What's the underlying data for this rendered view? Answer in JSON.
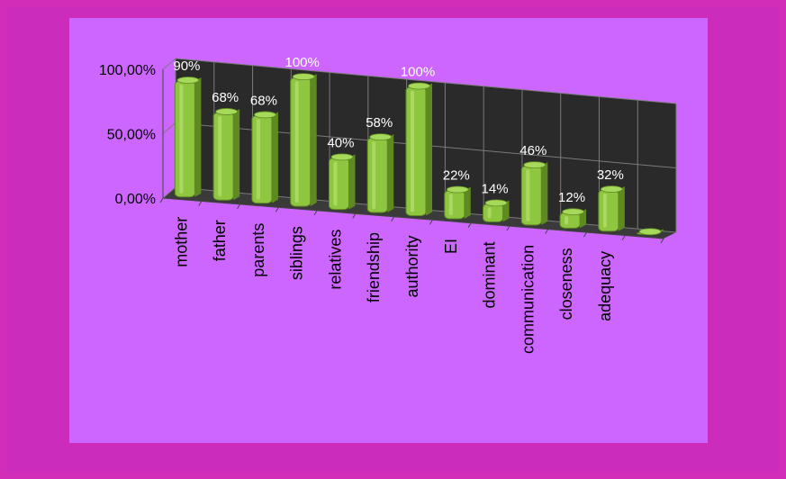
{
  "colors": {
    "page_background": "#d12db8",
    "plot_background": "#cc66ff",
    "wall": "#2a2a2a",
    "gridline": "#7a7a7a",
    "bar_fill": "#8ec63f",
    "bar_dark": "#5f8a22",
    "label_text": "#ffffff"
  },
  "chart_data": {
    "type": "bar",
    "style": "3d-column",
    "title": "",
    "xlabel": "",
    "ylabel": "",
    "categories": [
      "mother",
      "father",
      "parents",
      "siblings",
      "relatives",
      "friendship",
      "authority",
      "EI",
      "dominant",
      "communication",
      "closeness",
      "adequacy",
      ""
    ],
    "values": [
      90,
      68,
      68,
      100,
      40,
      58,
      100,
      22,
      14,
      46,
      12,
      32,
      0
    ],
    "data_labels": [
      "90%",
      "68%",
      "68%",
      "100%",
      "40%",
      "58%",
      "100%",
      "22%",
      "14%",
      "46%",
      "12%",
      "32%",
      ""
    ],
    "y_ticks": [
      0,
      50,
      100
    ],
    "y_tick_labels": [
      "0,00%",
      "50,00%",
      "100,00%"
    ],
    "ylim": [
      0,
      100
    ],
    "grid": true,
    "legend": "none"
  }
}
